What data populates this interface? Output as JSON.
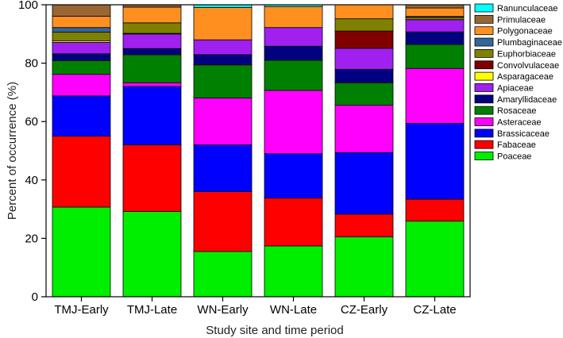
{
  "chart_data": {
    "type": "bar",
    "stacked": true,
    "categories": [
      "TMJ-Early",
      "TMJ-Late",
      "WN-Early",
      "WN-Late",
      "CZ-Early",
      "CZ-Late"
    ],
    "xlabel": "Study site and time period",
    "ylabel": "Percent of occurrence (%)",
    "ylim": [
      0,
      100
    ],
    "yticks": [
      0,
      20,
      40,
      60,
      80,
      100
    ],
    "grid": false,
    "legend_position": "right",
    "series": [
      {
        "name": "Poaceae",
        "color": "#00ee00",
        "values": [
          30.7,
          29.2,
          15.5,
          17.4,
          20.5,
          25.9
        ]
      },
      {
        "name": "Fabaceae",
        "color": "#ff0000",
        "values": [
          24.3,
          22.8,
          20.5,
          16.4,
          7.8,
          7.5
        ]
      },
      {
        "name": "Brassicaceae",
        "color": "#0000ff",
        "values": [
          13.8,
          20.0,
          16.0,
          15.2,
          21.1,
          26.0
        ]
      },
      {
        "name": "Asteraceae",
        "color": "#ff00ff",
        "values": [
          7.4,
          1.3,
          16.1,
          21.7,
          16.2,
          18.8
        ]
      },
      {
        "name": "Rosaceae",
        "color": "#008000",
        "values": [
          4.7,
          9.6,
          11.3,
          10.3,
          7.7,
          8.2
        ]
      },
      {
        "name": "Amaryllidaceae",
        "color": "#000080",
        "values": [
          2.3,
          2.1,
          3.5,
          4.8,
          4.6,
          4.3
        ]
      },
      {
        "name": "Apiaceae",
        "color": "#a020f0",
        "values": [
          3.9,
          5.0,
          5.1,
          6.4,
          7.2,
          4.2
        ]
      },
      {
        "name": "Asparagaceae",
        "color": "#ffff00",
        "values": [
          0.5,
          0.2,
          0,
          0,
          0,
          0
        ]
      },
      {
        "name": "Convolvulaceae",
        "color": "#800000",
        "values": [
          0,
          0,
          0,
          0,
          5.9,
          0
        ]
      },
      {
        "name": "Euphorbiaceae",
        "color": "#808000",
        "values": [
          3.0,
          3.6,
          0,
          0,
          4.2,
          0.8
        ]
      },
      {
        "name": "Plumbaginaceae",
        "color": "#336699",
        "values": [
          1.6,
          0,
          0,
          0,
          0,
          0.3
        ]
      },
      {
        "name": "Polygonaceae",
        "color": "#ff9020",
        "values": [
          3.9,
          5.4,
          11.1,
          7.2,
          4.8,
          2.9
        ]
      },
      {
        "name": "Primulaceae",
        "color": "#996633",
        "values": [
          3.9,
          0.8,
          0,
          0,
          0,
          1.1
        ]
      },
      {
        "name": "Ranunculaceae",
        "color": "#00ffff",
        "values": [
          0,
          0,
          0.9,
          0.6,
          0,
          0
        ]
      }
    ]
  }
}
